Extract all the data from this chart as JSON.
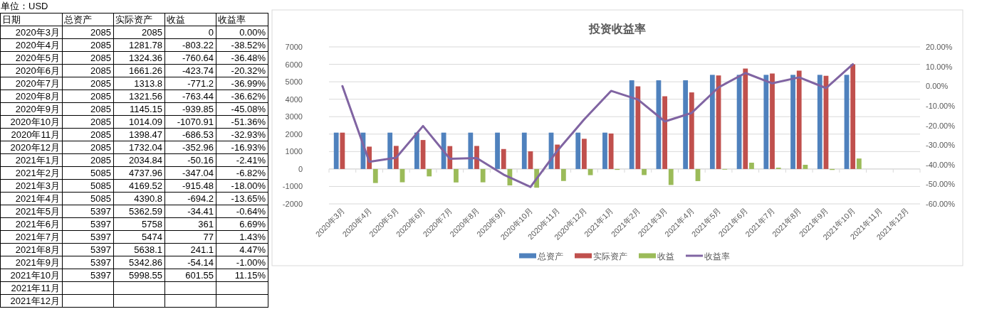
{
  "chart_data": [
    {
      "type": "other",
      "annotations": [
        "单位：USD",
        "日期"
      ],
      "categories": [
        "2020年3月",
        "2020年4月",
        "2020年5月",
        "2020年6月",
        "2020年7月",
        "2020年8月",
        "2020年9月",
        "2020年10月",
        "2020年11月",
        "2020年12月",
        "2021年1月",
        "2021年2月",
        "2021年3月",
        "2021年4月",
        "2021年5月",
        "2021年6月",
        "2021年7月",
        "2021年8月",
        "2021年9月",
        "2021年10月",
        "2021年11月",
        "2021年12月"
      ],
      "series": [
        {
          "name": "总资产",
          "values": [
            2085,
            2085,
            2085,
            2085,
            2085,
            2085,
            2085,
            2085,
            2085,
            2085,
            2085,
            5085,
            5085,
            5085,
            5397,
            5397,
            5397,
            5397,
            5397,
            5397,
            null,
            null
          ],
          "value_labels": [
            "2085",
            "2085",
            "2085",
            "2085",
            "2085",
            "2085",
            "2085",
            "2085",
            "2085",
            "2085",
            "2085",
            "5085",
            "5085",
            "5085",
            "5397",
            "5397",
            "5397",
            "5397",
            "5397",
            "5397",
            null,
            null
          ]
        },
        {
          "name": "实际资产",
          "values": [
            2085,
            1281.78,
            1324.36,
            1661.26,
            1313.8,
            1321.56,
            1145.15,
            1014.09,
            1398.47,
            1732.04,
            2034.84,
            4737.96,
            4169.52,
            4390.8,
            5362.59,
            5758,
            5474,
            5638.1,
            5342.86,
            5998.55,
            null,
            null
          ],
          "value_labels": [
            "2085",
            "1281.78",
            "1324.36",
            "1661.26",
            "1313.8",
            "1321.56",
            "1145.15",
            "1014.09",
            "1398.47",
            "1732.04",
            "2034.84",
            "4737.96",
            "4169.52",
            "4390.8",
            "5362.59",
            "5758",
            "5474",
            "5638.1",
            "5342.86",
            "5998.55",
            null,
            null
          ]
        },
        {
          "name": "收益",
          "values": [
            0,
            -803.22,
            -760.64,
            -423.74,
            -771.2,
            -763.44,
            -939.85,
            -1070.91,
            -686.53,
            -352.96,
            -50.16,
            -347.04,
            -915.48,
            -694.2,
            -34.41,
            361,
            77,
            241.1,
            -54.14,
            601.55,
            null,
            null
          ],
          "value_labels": [
            "0",
            "-803.22",
            "-760.64",
            "-423.74",
            "-771.2",
            "-763.44",
            "-939.85",
            "-1070.91",
            "-686.53",
            "-352.96",
            "-50.16",
            "-347.04",
            "-915.48",
            "-694.2",
            "-34.41",
            "361",
            "77",
            "241.1",
            "-54.14",
            "601.55",
            null,
            null
          ]
        },
        {
          "name": "收益率",
          "values": [
            0,
            -38.52,
            -36.48,
            -20.32,
            -36.99,
            -36.62,
            -45.08,
            -51.36,
            -32.93,
            -16.93,
            -2.41,
            -6.82,
            -18,
            -13.65,
            -0.64,
            6.69,
            1.43,
            4.47,
            -1,
            11.15,
            null,
            null
          ],
          "value_labels": [
            "0.00%",
            "-38.52%",
            "-36.48%",
            "-20.32%",
            "-36.99%",
            "-36.62%",
            "-45.08%",
            "-51.36%",
            "-32.93%",
            "-16.93%",
            "-2.41%",
            "-6.82%",
            "-18.00%",
            "-13.65%",
            "-0.64%",
            "6.69%",
            "1.43%",
            "4.47%",
            "-1.00%",
            "11.15%",
            null,
            null
          ]
        }
      ]
    },
    {
      "type": "bar",
      "title": "投资收益率",
      "categories": [
        "2020年3月",
        "2020年4月",
        "2020年5月",
        "2020年6月",
        "2020年7月",
        "2020年8月",
        "2020年9月",
        "2020年10月",
        "2020年11月",
        "2020年12月",
        "2021年1月",
        "2021年2月",
        "2021年3月",
        "2021年4月",
        "2021年5月",
        "2021年6月",
        "2021年7月",
        "2021年8月",
        "2021年9月",
        "2021年10月",
        "2021年11月",
        "2021年12月"
      ],
      "series": [
        {
          "name": "总资产",
          "color": "#4f81bd",
          "values": [
            2085,
            2085,
            2085,
            2085,
            2085,
            2085,
            2085,
            2085,
            2085,
            2085,
            2085,
            5085,
            5085,
            5085,
            5397,
            5397,
            5397,
            5397,
            5397,
            5397,
            null,
            null
          ]
        },
        {
          "name": "实际资产",
          "color": "#c0504d",
          "values": [
            2085,
            1281.78,
            1324.36,
            1661.26,
            1313.8,
            1321.56,
            1145.15,
            1014.09,
            1398.47,
            1732.04,
            2034.84,
            4737.96,
            4169.52,
            4390.8,
            5362.59,
            5758,
            5474,
            5638.1,
            5342.86,
            5998.55,
            null,
            null
          ]
        },
        {
          "name": "收益",
          "color": "#9bbb59",
          "values": [
            0,
            -803.22,
            -760.64,
            -423.74,
            -771.2,
            -763.44,
            -939.85,
            -1070.91,
            -686.53,
            -352.96,
            -50.16,
            -347.04,
            -915.48,
            -694.2,
            -34.41,
            361,
            77,
            241.1,
            -54.14,
            601.55,
            null,
            null
          ]
        },
        {
          "name": "收益率",
          "type": "line",
          "axis": "y2",
          "color": "#8064a2",
          "values": [
            0,
            -38.52,
            -36.48,
            -20.32,
            -36.99,
            -36.62,
            -45.08,
            -51.36,
            -32.93,
            -16.93,
            -2.41,
            -6.82,
            -18,
            -13.65,
            -0.64,
            6.69,
            1.43,
            4.47,
            -1,
            11.15,
            null,
            null
          ]
        }
      ],
      "ylim": [
        -2000,
        7000
      ],
      "yticks": [
        -2000,
        -1000,
        0,
        1000,
        2000,
        3000,
        4000,
        5000,
        6000,
        7000
      ],
      "y2lim": [
        -60,
        20
      ],
      "y2ticks": [
        {
          "value": -60,
          "label": "-60.00%"
        },
        {
          "value": -50,
          "label": "-50.00%"
        },
        {
          "value": -40,
          "label": "-40.00%"
        },
        {
          "value": -30,
          "label": "-30.00%"
        },
        {
          "value": -20,
          "label": "-20.00%"
        },
        {
          "value": -10,
          "label": "-10.00%"
        },
        {
          "value": 0,
          "label": "0.00%"
        },
        {
          "value": 10,
          "label": "10.00%"
        },
        {
          "value": 20,
          "label": "20.00%"
        }
      ],
      "grid": "y",
      "legend": "bottom"
    }
  ]
}
